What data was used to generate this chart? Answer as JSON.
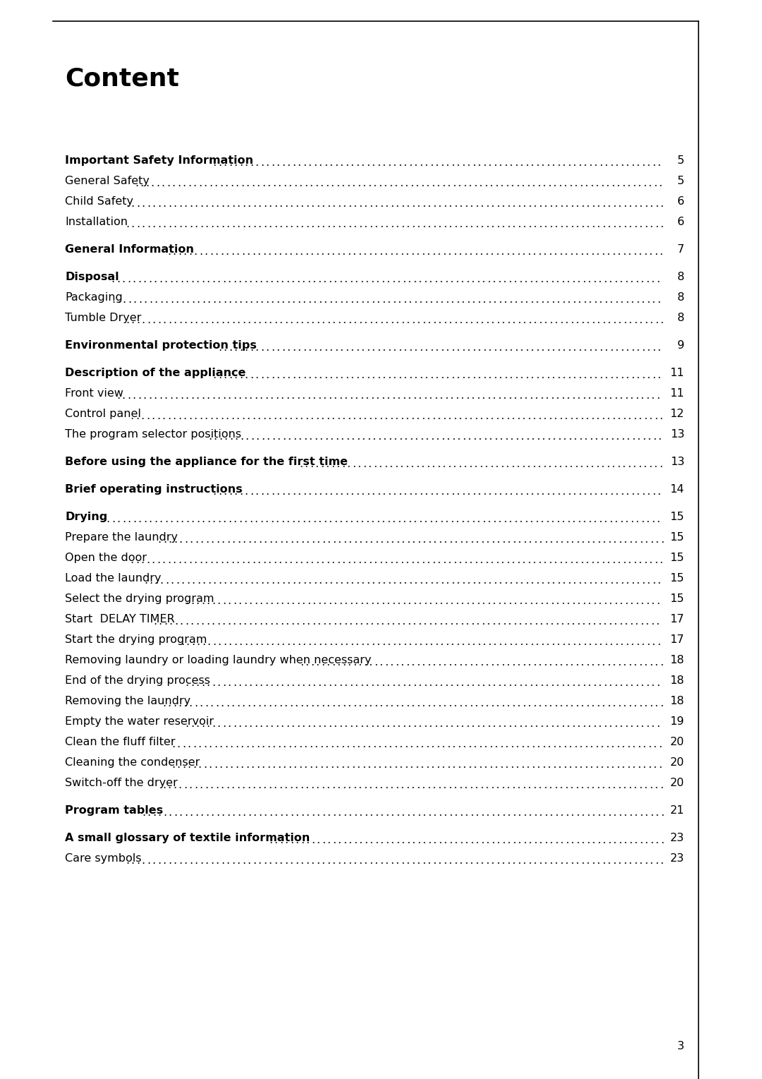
{
  "title": "Content",
  "page_number": "3",
  "bg_color": "#ffffff",
  "text_color": "#000000",
  "entries": [
    {
      "text": "Important Safety Information",
      "page": "5",
      "bold": true,
      "spacer_before": true
    },
    {
      "text": "General Safety",
      "page": "5",
      "bold": false,
      "spacer_before": false
    },
    {
      "text": "Child Safety",
      "page": "6",
      "bold": false,
      "spacer_before": false
    },
    {
      "text": "Installation",
      "page": "6",
      "bold": false,
      "spacer_before": false
    },
    {
      "text": "General Information",
      "page": "7",
      "bold": true,
      "spacer_before": true
    },
    {
      "text": "Disposal",
      "page": "8",
      "bold": true,
      "spacer_before": true
    },
    {
      "text": "Packaging",
      "page": "8",
      "bold": false,
      "spacer_before": false
    },
    {
      "text": "Tumble Dryer",
      "page": "8",
      "bold": false,
      "spacer_before": false
    },
    {
      "text": "Environmental protection tips",
      "page": "9",
      "bold": true,
      "spacer_before": true
    },
    {
      "text": "Description of the appliance",
      "page": "11",
      "bold": true,
      "spacer_before": true
    },
    {
      "text": "Front view",
      "page": "11",
      "bold": false,
      "spacer_before": false
    },
    {
      "text": "Control panel",
      "page": "12",
      "bold": false,
      "spacer_before": false
    },
    {
      "text": "The program selector positions",
      "page": "13",
      "bold": false,
      "spacer_before": false
    },
    {
      "text": "Before using the appliance for the first time",
      "page": "13",
      "bold": true,
      "spacer_before": true
    },
    {
      "text": "Brief operating instructions",
      "page": "14",
      "bold": true,
      "spacer_before": true
    },
    {
      "text": "Drying",
      "page": "15",
      "bold": true,
      "spacer_before": true
    },
    {
      "text": "Prepare the laundry",
      "page": "15",
      "bold": false,
      "spacer_before": false
    },
    {
      "text": "Open the door",
      "page": "15",
      "bold": false,
      "spacer_before": false
    },
    {
      "text": "Load the laundry",
      "page": "15",
      "bold": false,
      "spacer_before": false
    },
    {
      "text": "Select the drying program",
      "page": "15",
      "bold": false,
      "spacer_before": false
    },
    {
      "text": "Start  DELAY TIMER",
      "page": "17",
      "bold": false,
      "spacer_before": false
    },
    {
      "text": "Start the drying program",
      "page": "17",
      "bold": false,
      "spacer_before": false
    },
    {
      "text": "Removing laundry or loading laundry when necessary",
      "page": "18",
      "bold": false,
      "spacer_before": false
    },
    {
      "text": "End of the drying process",
      "page": "18",
      "bold": false,
      "spacer_before": false
    },
    {
      "text": "Removing the laundry",
      "page": "18",
      "bold": false,
      "spacer_before": false
    },
    {
      "text": "Empty the water reservoir",
      "page": "19",
      "bold": false,
      "spacer_before": false
    },
    {
      "text": "Clean the fluff filter",
      "page": "20",
      "bold": false,
      "spacer_before": false
    },
    {
      "text": "Cleaning the condenser",
      "page": "20",
      "bold": false,
      "spacer_before": false
    },
    {
      "text": "Switch-off the dryer",
      "page": "20",
      "bold": false,
      "spacer_before": false
    },
    {
      "text": "Program tables",
      "page": "21",
      "bold": true,
      "spacer_before": true
    },
    {
      "text": "A small glossary of textile information",
      "page": "23",
      "bold": true,
      "spacer_before": true
    },
    {
      "text": "Care symbols",
      "page": "23",
      "bold": false,
      "spacer_before": false
    }
  ],
  "title_fontsize": 26,
  "entry_fontsize": 11.5,
  "border_color": "#000000",
  "border_linewidth": 1.2,
  "page_num_fontsize": 11.5,
  "page3_fontsize": 11.5
}
